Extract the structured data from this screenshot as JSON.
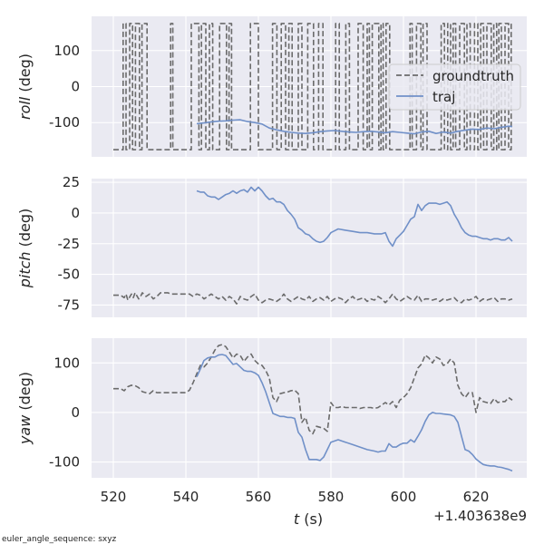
{
  "chart_data": [
    {
      "type": "line",
      "ylabel_italic": "roll",
      "ylabel_unit": "(deg)",
      "ylim": [
        -195,
        195
      ],
      "yticks": [
        -100,
        0,
        100
      ],
      "grid": true,
      "legend": {
        "placement": "right",
        "entries": [
          "groundtruth",
          "traj"
        ]
      },
      "series": [
        {
          "name": "groundtruth",
          "style": "dashed",
          "color": "#6b6b6b",
          "toggle_x": [
            522.7,
            523.5,
            524.5,
            525.3,
            526.1,
            527.2,
            527.9,
            529.3,
            535.8,
            536.4,
            541.5,
            543.6,
            544.3,
            545.5,
            546.5,
            547.4,
            549.3,
            551.2,
            551.9,
            552.6,
            557.8,
            560.0,
            563.9,
            565.1,
            566.3,
            567.5,
            568.4,
            569.3,
            571.0,
            572.0,
            573.6,
            575.2,
            576.6,
            577.8,
            581.3,
            582.3,
            584.1,
            585.1,
            587.5,
            588.9,
            590.0,
            590.6,
            591.4,
            593.2,
            593.8,
            594.4,
            595.2,
            596.2,
            601.8,
            602.4,
            603.6,
            604.8,
            605.4,
            606.5,
            610.4,
            611.3,
            612.2,
            613.0,
            613.7,
            614.4,
            615.5,
            616.8,
            617.5,
            618.4,
            619.6,
            620.5,
            621.3,
            622.1,
            623.0,
            624.2,
            624.9,
            625.7,
            626.3,
            627.0,
            628.0,
            629.0,
            629.7
          ],
          "low_value": -175,
          "high_value": 175
        },
        {
          "name": "traj",
          "style": "solid",
          "color": "#7090c8",
          "x": [
            543.0,
            545,
            547,
            549,
            551,
            553,
            555,
            557,
            559,
            561,
            563,
            565,
            567,
            569,
            571,
            573,
            575,
            577,
            579,
            581,
            583,
            585,
            587,
            589,
            591,
            593,
            595,
            597,
            599,
            601,
            603,
            605,
            607,
            609,
            611,
            613,
            615,
            617,
            619,
            621,
            623,
            625,
            627,
            629,
            630
          ],
          "y": [
            -103,
            -101,
            -98,
            -96,
            -95,
            -93,
            -92,
            -97,
            -100,
            -104,
            -115,
            -120,
            -124,
            -127,
            -129,
            -130,
            -128,
            -125,
            -123,
            -122,
            -124,
            -126,
            -127,
            -125,
            -124,
            -126,
            -128,
            -125,
            -127,
            -129,
            -131,
            -126,
            -124,
            -130,
            -126,
            -129,
            -124,
            -121,
            -118,
            -119,
            -115,
            -117,
            -113,
            -110,
            -111
          ]
        }
      ]
    },
    {
      "type": "line",
      "ylabel_italic": "pitch",
      "ylabel_unit": "(deg)",
      "ylim": [
        -85,
        28
      ],
      "yticks": [
        -75,
        -50,
        -25,
        0,
        25
      ],
      "grid": true,
      "series": [
        {
          "name": "groundtruth",
          "style": "dashed",
          "color": "#6b6b6b",
          "x": [
            520,
            521,
            522,
            523,
            523.5,
            524,
            525,
            525.5,
            526,
            527,
            527.5,
            528,
            529,
            530,
            531,
            532,
            533,
            534,
            535,
            536,
            537,
            538,
            539,
            540,
            541,
            542,
            543,
            544,
            545,
            546,
            547,
            548,
            549,
            550,
            551,
            552,
            553,
            554,
            555,
            556,
            557,
            558,
            559,
            560,
            561,
            562,
            563,
            564,
            565,
            566,
            567,
            568,
            569,
            570,
            571,
            572,
            573,
            574,
            575,
            576,
            577,
            578,
            579,
            580,
            581,
            582,
            583,
            584,
            585,
            586,
            587,
            588,
            589,
            590,
            591,
            592,
            593,
            594,
            595,
            596,
            597,
            598,
            599,
            600,
            601,
            602,
            603,
            604,
            605,
            606,
            607,
            608,
            609,
            610,
            611,
            612,
            613,
            614,
            615,
            616,
            617,
            618,
            619,
            620,
            621,
            622,
            623,
            624,
            625,
            626,
            627,
            628,
            629,
            630
          ],
          "y": [
            -67,
            -67,
            -67,
            -69,
            -66,
            -71,
            -66,
            -69,
            -65,
            -70,
            -68,
            -65,
            -68,
            -66,
            -70,
            -68,
            -65,
            -65,
            -65,
            -66,
            -66,
            -66,
            -66,
            -66,
            -66,
            -68,
            -66,
            -67,
            -70,
            -68,
            -66,
            -68,
            -70,
            -68,
            -71,
            -68,
            -70,
            -74,
            -68,
            -70,
            -71,
            -68,
            -66,
            -71,
            -73,
            -71,
            -70,
            -71,
            -72,
            -70,
            -66,
            -70,
            -72,
            -70,
            -68,
            -70,
            -71,
            -68,
            -72,
            -70,
            -69,
            -71,
            -68,
            -72,
            -70,
            -69,
            -70,
            -73,
            -70,
            -68,
            -71,
            -70,
            -69,
            -72,
            -70,
            -71,
            -68,
            -70,
            -73,
            -70,
            -66,
            -70,
            -72,
            -70,
            -68,
            -70,
            -71,
            -67,
            -72,
            -70,
            -70,
            -71,
            -70,
            -72,
            -70,
            -71,
            -70,
            -69,
            -72,
            -73,
            -70,
            -71,
            -70,
            -68,
            -72,
            -70,
            -71,
            -70,
            -69,
            -72,
            -70,
            -70,
            -71,
            -70
          ]
        },
        {
          "name": "traj",
          "style": "solid",
          "color": "#7090c8",
          "x": [
            543,
            544,
            545,
            546,
            547,
            548,
            549,
            550,
            551,
            552,
            553,
            554,
            555,
            556,
            557,
            558,
            559,
            560,
            561,
            562,
            563,
            564,
            565,
            566,
            567,
            568,
            569,
            570,
            571,
            572,
            573,
            574,
            575,
            576,
            577,
            578,
            579,
            580,
            582,
            584,
            586,
            588,
            590,
            592,
            593,
            594,
            595,
            596,
            597,
            598,
            599,
            600,
            601,
            602,
            603,
            604,
            605,
            606,
            607,
            608,
            609,
            610,
            611,
            612,
            613,
            614,
            615,
            616,
            617,
            618,
            619,
            620,
            621,
            622,
            623,
            624,
            625,
            626,
            627,
            628,
            629,
            630
          ],
          "y": [
            18,
            17,
            17,
            14,
            13,
            13,
            11,
            13,
            15,
            16,
            18,
            16,
            18,
            19,
            17,
            21,
            18,
            21,
            18,
            14,
            11,
            12,
            9,
            9,
            7,
            2,
            -1,
            -5,
            -12,
            -14,
            -17,
            -18,
            -21,
            -23,
            -24,
            -23,
            -20,
            -16,
            -13,
            -14,
            -15,
            -16,
            -16,
            -17,
            -17,
            -17,
            -16,
            -23,
            -27,
            -21,
            -18,
            -15,
            -10,
            -5,
            -3,
            7,
            2,
            6,
            8,
            8,
            8,
            7,
            8,
            9,
            6,
            -1,
            -6,
            -12,
            -16,
            -18,
            -19,
            -19,
            -20,
            -21,
            -21,
            -22,
            -21,
            -21,
            -22,
            -22,
            -20,
            -23
          ]
        }
      ]
    },
    {
      "type": "line",
      "ylabel_italic": "yaw",
      "ylabel_unit": "(deg)",
      "ylim": [
        -132,
        150
      ],
      "yticks": [
        -100,
        0,
        100
      ],
      "grid": true,
      "xlabel_italic": "t",
      "xlabel_unit": "(s)",
      "xlim": [
        514,
        634
      ],
      "xticks": [
        520,
        540,
        560,
        580,
        600,
        620
      ],
      "x_offset_label": "+1.403638e9",
      "series": [
        {
          "name": "groundtruth",
          "style": "dashed",
          "color": "#6b6b6b",
          "x": [
            520,
            521,
            522,
            523,
            524,
            525,
            526,
            527,
            528,
            529,
            530,
            531,
            532,
            533,
            534,
            535,
            536,
            537,
            538,
            539,
            540,
            541,
            542,
            543,
            544,
            545,
            546,
            547,
            548,
            549,
            550,
            551,
            552,
            553,
            554,
            555,
            556,
            557,
            558,
            559,
            560,
            561,
            562,
            563,
            564,
            565,
            566,
            567,
            568,
            569,
            570,
            571,
            572,
            573,
            574,
            575,
            576,
            577,
            578,
            579,
            580,
            581,
            582,
            583,
            584,
            585,
            586,
            587,
            588,
            589,
            590,
            591,
            592,
            593,
            594,
            595,
            596,
            597,
            598,
            599,
            600,
            601,
            602,
            603,
            604,
            605,
            606,
            607,
            608,
            609,
            610,
            611,
            612,
            613,
            614,
            615,
            616,
            617,
            618,
            619,
            620,
            621,
            622,
            623,
            624,
            625,
            626,
            627,
            628,
            629,
            630
          ],
          "y": [
            48,
            48,
            48,
            44,
            52,
            55,
            54,
            50,
            42,
            40,
            38,
            44,
            40,
            40,
            40,
            40,
            40,
            40,
            40,
            40,
            40,
            45,
            60,
            78,
            95,
            92,
            100,
            112,
            126,
            135,
            137,
            133,
            122,
            110,
            118,
            115,
            103,
            112,
            118,
            105,
            98,
            95,
            85,
            70,
            30,
            22,
            38,
            40,
            41,
            44,
            45,
            38,
            -20,
            -10,
            -36,
            -43,
            -28,
            -30,
            -32,
            -38,
            20,
            10,
            10,
            12,
            10,
            10,
            10,
            10,
            8,
            10,
            10,
            10,
            8,
            10,
            15,
            20,
            15,
            22,
            10,
            25,
            30,
            38,
            50,
            70,
            90,
            98,
            116,
            110,
            100,
            112,
            108,
            95,
            98,
            108,
            100,
            55,
            38,
            30,
            40,
            40,
            0,
            30,
            22,
            20,
            18,
            28,
            20,
            22,
            22,
            30,
            25
          ]
        },
        {
          "name": "traj",
          "style": "solid",
          "color": "#7090c8",
          "x": [
            543,
            544,
            545,
            546,
            547,
            548,
            549,
            550,
            551,
            552,
            553,
            554,
            555,
            556,
            557,
            558,
            559,
            560,
            561,
            562,
            563,
            564,
            565,
            566,
            567,
            568,
            569,
            570,
            571,
            572,
            573,
            574,
            575,
            576,
            577,
            578,
            580,
            582,
            584,
            586,
            588,
            590,
            592,
            593,
            594,
            595,
            596,
            597,
            598,
            599,
            600,
            601,
            602,
            603,
            604,
            605,
            606,
            607,
            608,
            609,
            610,
            611,
            612,
            613,
            614,
            615,
            616,
            617,
            618,
            619,
            620,
            621,
            622,
            623,
            624,
            625,
            626,
            627,
            628,
            629,
            630
          ],
          "y": [
            72,
            88,
            105,
            110,
            112,
            112,
            116,
            117,
            115,
            106,
            97,
            99,
            92,
            85,
            83,
            83,
            80,
            75,
            60,
            42,
            20,
            -2,
            -5,
            -8,
            -8,
            -10,
            -10,
            -12,
            -40,
            -50,
            -75,
            -95,
            -95,
            -95,
            -97,
            -90,
            -60,
            -55,
            -60,
            -65,
            -70,
            -75,
            -78,
            -80,
            -78,
            -78,
            -63,
            -70,
            -70,
            -65,
            -62,
            -62,
            -55,
            -60,
            -48,
            -35,
            -18,
            -5,
            0,
            -2,
            -2,
            -3,
            -4,
            -5,
            -8,
            -20,
            -48,
            -75,
            -78,
            -85,
            -94,
            -100,
            -105,
            -107,
            -108,
            -108,
            -110,
            -111,
            -113,
            -115,
            -118
          ]
        }
      ]
    }
  ],
  "footer_text": "euler_angle_sequence: sxyz",
  "colors": {
    "axes_bg": "#eaeaf2",
    "grid": "#ffffff",
    "groundtruth": "#6b6b6b",
    "traj": "#7090c8"
  }
}
